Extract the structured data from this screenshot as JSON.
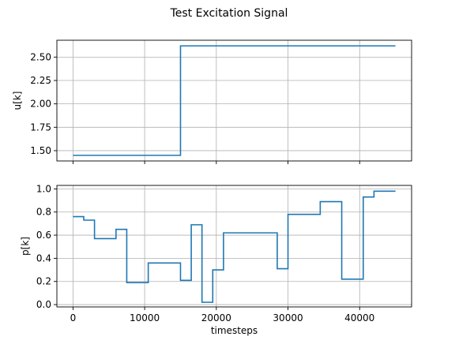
{
  "figure": {
    "title": "Test Excitation Signal",
    "line_color": "#1f77b4",
    "grid_color": "#b0b0b0"
  },
  "chart_data": [
    {
      "type": "line",
      "step": true,
      "ylabel": "u[k]",
      "xlabel": "",
      "xlim": [
        -2250,
        47250
      ],
      "ylim": [
        1.39,
        2.68
      ],
      "grid": true,
      "xticks": [
        0,
        10000,
        20000,
        30000,
        40000
      ],
      "xtick_labels_shown": false,
      "yticks": [
        1.5,
        1.75,
        2.0,
        2.25,
        2.5
      ],
      "ytick_labels": [
        "1.50",
        "1.75",
        "2.00",
        "2.25",
        "2.50"
      ],
      "series": [
        {
          "x": [
            0,
            15000,
            15000,
            45000
          ],
          "y": [
            1.45,
            1.45,
            2.62,
            2.62
          ]
        }
      ]
    },
    {
      "type": "line",
      "step": true,
      "ylabel": "p[k]",
      "xlabel": "timesteps",
      "xlim": [
        -2250,
        47250
      ],
      "ylim": [
        -0.02,
        1.03
      ],
      "grid": true,
      "xticks": [
        0,
        10000,
        20000,
        30000,
        40000
      ],
      "xtick_labels": [
        "0",
        "10000",
        "20000",
        "30000",
        "40000"
      ],
      "yticks": [
        0.0,
        0.2,
        0.4,
        0.6,
        0.8,
        1.0
      ],
      "ytick_labels": [
        "0.0",
        "0.2",
        "0.4",
        "0.6",
        "0.8",
        "1.0"
      ],
      "series": [
        {
          "x": [
            0,
            1500,
            1500,
            3000,
            3000,
            6000,
            6000,
            7500,
            7500,
            10500,
            10500,
            15000,
            15000,
            16500,
            16500,
            18000,
            18000,
            19500,
            19500,
            21000,
            21000,
            28500,
            28500,
            30000,
            30000,
            34500,
            34500,
            37500,
            37500,
            40500,
            40500,
            42000,
            42000,
            45000
          ],
          "y": [
            0.76,
            0.76,
            0.73,
            0.73,
            0.57,
            0.57,
            0.65,
            0.65,
            0.19,
            0.19,
            0.36,
            0.36,
            0.21,
            0.21,
            0.69,
            0.69,
            0.02,
            0.02,
            0.3,
            0.3,
            0.62,
            0.62,
            0.31,
            0.31,
            0.78,
            0.78,
            0.89,
            0.89,
            0.22,
            0.22,
            0.93,
            0.93,
            0.98,
            0.98
          ]
        }
      ]
    }
  ]
}
